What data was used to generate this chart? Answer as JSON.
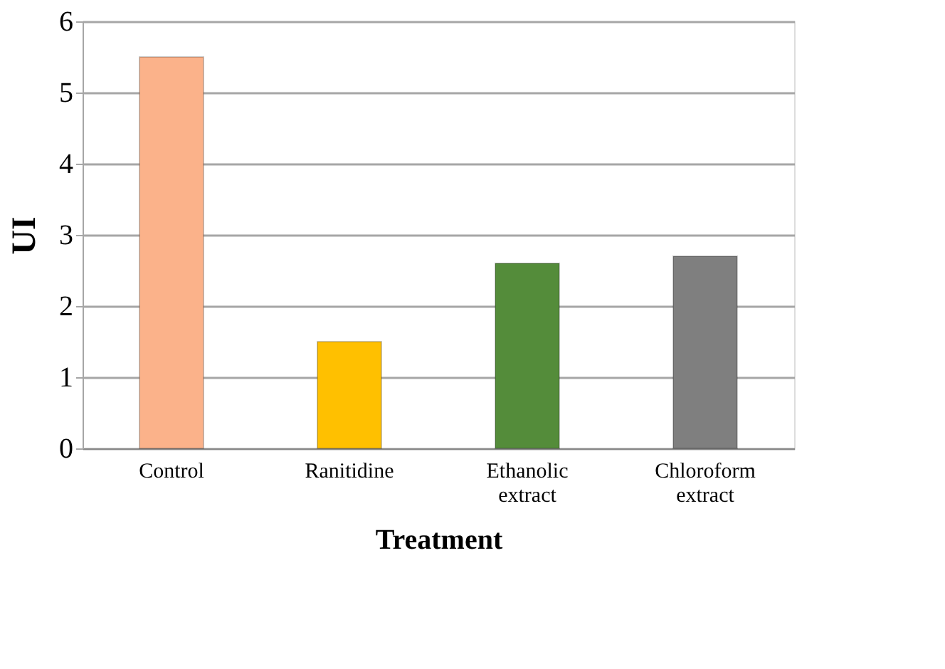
{
  "chart_data": {
    "type": "bar",
    "xlabel": "Treatment",
    "ylabel": "UI",
    "categories": [
      "Control",
      "Ranitidine",
      "Ethanolic extract",
      "Chloroform extract"
    ],
    "values": [
      5.5,
      1.5,
      2.6,
      2.7
    ],
    "colors": [
      "#fbb28a",
      "#ffc000",
      "#548c3a",
      "#7f7f7f"
    ],
    "ylim": [
      0,
      6
    ],
    "yticks": [
      0,
      1,
      2,
      3,
      4,
      5,
      6
    ],
    "grid": "y"
  }
}
